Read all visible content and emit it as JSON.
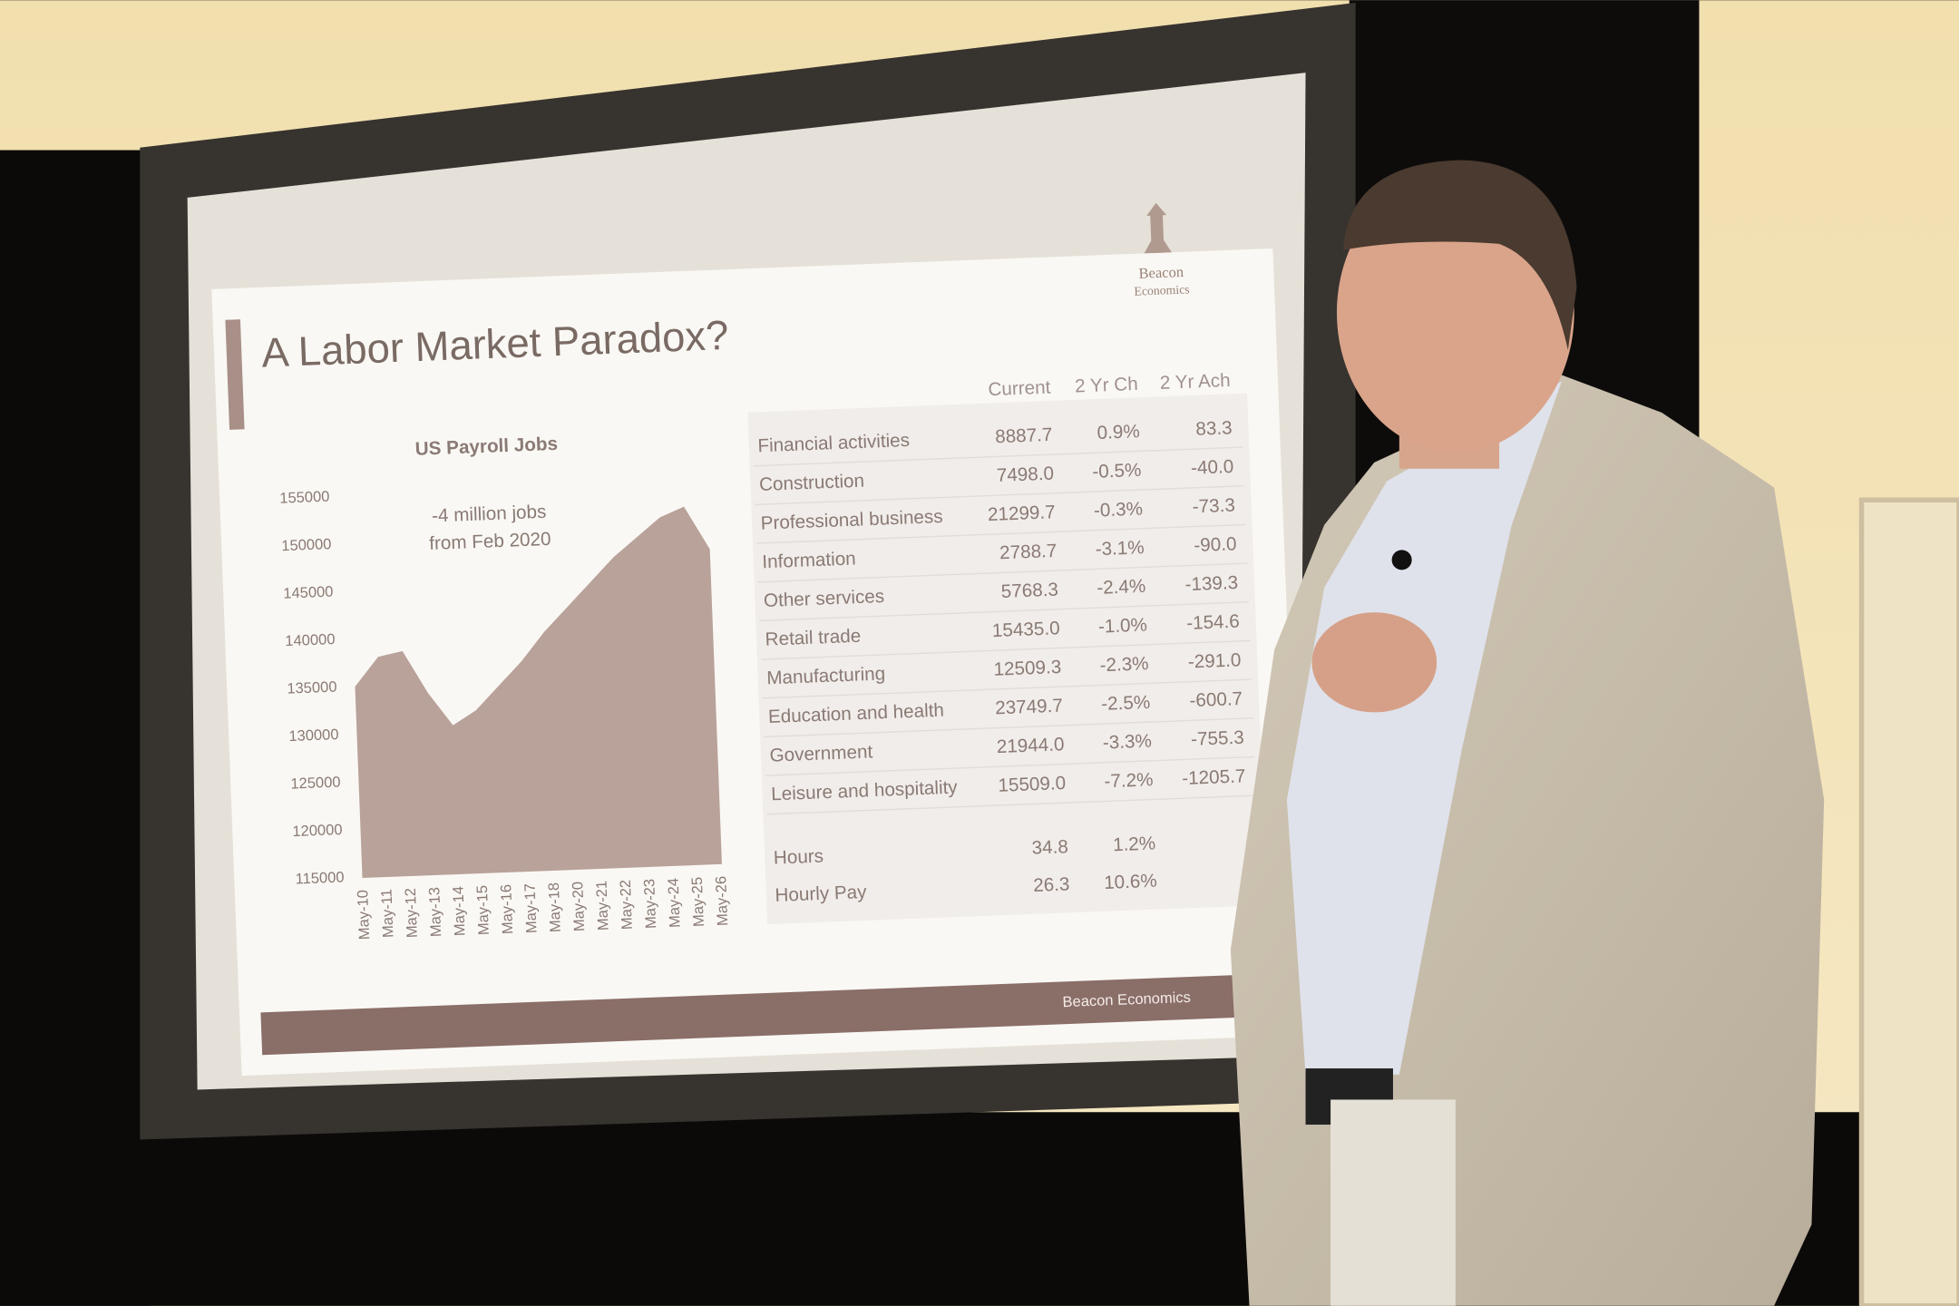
{
  "chart_data": {
    "type": "area",
    "title": "US Payroll Jobs",
    "annotation": [
      "-4 million jobs",
      "from Feb 2020"
    ],
    "categories": [
      "May-10",
      "May-11",
      "May-12",
      "May-13",
      "May-14",
      "May-15",
      "May-16",
      "May-17",
      "May-18",
      "May-20",
      "May-21",
      "May-22",
      "May-23",
      "May-24",
      "May-25",
      "May-26"
    ],
    "values": [
      135000,
      138000,
      138500,
      134000,
      130500,
      132000,
      134500,
      137000,
      140000,
      142500,
      145000,
      147500,
      149500,
      151500,
      152500,
      148000
    ],
    "color": "#b9a29a",
    "ylim": [
      115000,
      155000
    ],
    "yticks": [
      115000,
      120000,
      125000,
      130000,
      135000,
      140000,
      145000,
      150000,
      155000
    ]
  },
  "slide": {
    "title": "A Labor Market Paradox?",
    "logo": [
      "Beacon",
      "Economics"
    ],
    "footer": "Beacon Economics",
    "table": {
      "header": [
        "Current",
        "2 Yr Ch",
        "2 Yr Ach"
      ],
      "rows": [
        [
          "Financial activities",
          "8887.7",
          "0.9%",
          "83.3"
        ],
        [
          "Construction",
          "7498.0",
          "-0.5%",
          "-40.0"
        ],
        [
          "Professional business",
          "21299.7",
          "-0.3%",
          "-73.3"
        ],
        [
          "Information",
          "2788.7",
          "-3.1%",
          "-90.0"
        ],
        [
          "Other services",
          "5768.3",
          "-2.4%",
          "-139.3"
        ],
        [
          "Retail trade",
          "15435.0",
          "-1.0%",
          "-154.6"
        ],
        [
          "Manufacturing",
          "12509.3",
          "-2.3%",
          "-291.0"
        ],
        [
          "Education and health",
          "23749.7",
          "-2.5%",
          "-600.7"
        ],
        [
          "Government",
          "21944.0",
          "-3.3%",
          "-755.3"
        ],
        [
          "Leisure and hospitality",
          "15509.0",
          "-7.2%",
          "-1205.7"
        ]
      ],
      "extra_rows": [
        [
          "Hours",
          "34.8",
          "1.2%"
        ],
        [
          "Hourly Pay",
          "26.3",
          "10.6%"
        ]
      ]
    }
  }
}
